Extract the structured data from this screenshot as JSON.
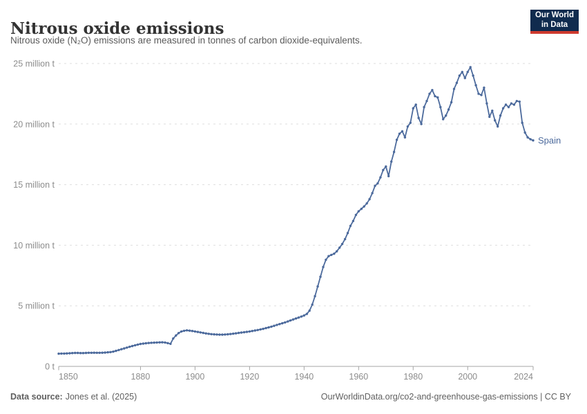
{
  "header": {
    "title": "Nitrous oxide emissions",
    "subtitle": "Nitrous oxide (N₂O) emissions are measured in tonnes of carbon dioxide-equivalents."
  },
  "logo": {
    "line1": "Our World",
    "line2": "in Data",
    "bg_color": "#102B4E",
    "bar_color": "#CE3A2E",
    "text_color": "#ffffff"
  },
  "chart_data": {
    "type": "line",
    "title": "Nitrous oxide emissions",
    "entity": "Spain",
    "ylabel": "",
    "xlabel": "",
    "unit": "tonnes of carbon dioxide-equivalents",
    "line_color": "#4C6A9C",
    "grid": true,
    "gridline_color": "#dedede",
    "axis_color": "#a5a5a5",
    "tick_label_color": "#8c8c8c",
    "legend_position": "end-of-line entity label",
    "xlim": [
      1850,
      2024
    ],
    "ylim": [
      0,
      25
    ],
    "x_ticks": [
      1850,
      1880,
      1900,
      1920,
      1940,
      1960,
      1980,
      2000,
      2024
    ],
    "y_ticks": [
      {
        "value": 0,
        "label": "0 t"
      },
      {
        "value": 5,
        "label": "5 million t"
      },
      {
        "value": 10,
        "label": "10 million t"
      },
      {
        "value": 15,
        "label": "15 million t"
      },
      {
        "value": 20,
        "label": "20 million t"
      },
      {
        "value": 25,
        "label": "25 million t"
      }
    ],
    "series": [
      {
        "name": "Spain",
        "unit": "million tonnes CO₂-equivalents",
        "years": [
          1850,
          1851,
          1852,
          1853,
          1854,
          1855,
          1856,
          1857,
          1858,
          1859,
          1860,
          1861,
          1862,
          1863,
          1864,
          1865,
          1866,
          1867,
          1868,
          1869,
          1870,
          1871,
          1872,
          1873,
          1874,
          1875,
          1876,
          1877,
          1878,
          1879,
          1880,
          1881,
          1882,
          1883,
          1884,
          1885,
          1886,
          1887,
          1888,
          1889,
          1890,
          1891,
          1892,
          1893,
          1894,
          1895,
          1896,
          1897,
          1898,
          1899,
          1900,
          1901,
          1902,
          1903,
          1904,
          1905,
          1906,
          1907,
          1908,
          1909,
          1910,
          1911,
          1912,
          1913,
          1914,
          1915,
          1916,
          1917,
          1918,
          1919,
          1920,
          1921,
          1922,
          1923,
          1924,
          1925,
          1926,
          1927,
          1928,
          1929,
          1930,
          1931,
          1932,
          1933,
          1934,
          1935,
          1936,
          1937,
          1938,
          1939,
          1940,
          1941,
          1942,
          1943,
          1944,
          1945,
          1946,
          1947,
          1948,
          1949,
          1950,
          1951,
          1952,
          1953,
          1954,
          1955,
          1956,
          1957,
          1958,
          1959,
          1960,
          1961,
          1962,
          1963,
          1964,
          1965,
          1966,
          1967,
          1968,
          1969,
          1970,
          1971,
          1972,
          1973,
          1974,
          1975,
          1976,
          1977,
          1978,
          1979,
          1980,
          1981,
          1982,
          1983,
          1984,
          1985,
          1986,
          1987,
          1988,
          1989,
          1990,
          1991,
          1992,
          1993,
          1994,
          1995,
          1996,
          1997,
          1998,
          1999,
          2000,
          2001,
          2002,
          2003,
          2004,
          2005,
          2006,
          2007,
          2008,
          2009,
          2010,
          2011,
          2012,
          2013,
          2014,
          2015,
          2016,
          2017,
          2018,
          2019,
          2020,
          2021,
          2022,
          2023,
          2024
        ],
        "values": [
          1.05,
          1.06,
          1.06,
          1.07,
          1.08,
          1.1,
          1.11,
          1.11,
          1.1,
          1.1,
          1.11,
          1.12,
          1.12,
          1.13,
          1.12,
          1.12,
          1.13,
          1.14,
          1.16,
          1.18,
          1.22,
          1.28,
          1.35,
          1.42,
          1.48,
          1.55,
          1.62,
          1.68,
          1.74,
          1.8,
          1.85,
          1.88,
          1.91,
          1.93,
          1.95,
          1.96,
          1.97,
          1.98,
          1.99,
          1.97,
          1.92,
          1.86,
          2.3,
          2.55,
          2.75,
          2.88,
          2.94,
          2.97,
          2.95,
          2.92,
          2.88,
          2.84,
          2.8,
          2.76,
          2.72,
          2.69,
          2.66,
          2.64,
          2.63,
          2.62,
          2.62,
          2.63,
          2.65,
          2.67,
          2.7,
          2.73,
          2.76,
          2.79,
          2.82,
          2.85,
          2.88,
          2.92,
          2.96,
          3.0,
          3.05,
          3.1,
          3.16,
          3.22,
          3.28,
          3.35,
          3.42,
          3.49,
          3.56,
          3.63,
          3.71,
          3.79,
          3.87,
          3.95,
          4.03,
          4.11,
          4.2,
          4.33,
          4.6,
          5.1,
          5.8,
          6.6,
          7.4,
          8.2,
          8.8,
          9.1,
          9.2,
          9.3,
          9.5,
          9.8,
          10.1,
          10.5,
          11.0,
          11.6,
          12.0,
          12.5,
          12.8,
          13.0,
          13.2,
          13.45,
          13.8,
          14.3,
          14.9,
          15.1,
          15.6,
          16.2,
          16.5,
          15.7,
          16.9,
          17.7,
          18.7,
          19.2,
          19.4,
          18.9,
          19.8,
          20.1,
          21.3,
          21.6,
          20.5,
          20.0,
          21.4,
          21.9,
          22.5,
          22.8,
          22.3,
          22.2,
          21.4,
          20.4,
          20.7,
          21.2,
          21.8,
          22.9,
          23.4,
          24.0,
          24.3,
          23.8,
          24.3,
          24.7,
          24.0,
          23.2,
          22.5,
          22.4,
          23.0,
          21.7,
          20.6,
          21.1,
          20.3,
          19.8,
          20.7,
          21.3,
          21.6,
          21.4,
          21.7,
          21.6,
          21.9,
          21.85,
          20.1,
          19.3,
          18.9,
          18.75,
          18.65
        ]
      }
    ]
  },
  "footer": {
    "source_label": "Data source:",
    "source_value": "Jones et al. (2025)",
    "citation": "OurWorldinData.org/co2-and-greenhouse-gas-emissions | CC BY"
  }
}
